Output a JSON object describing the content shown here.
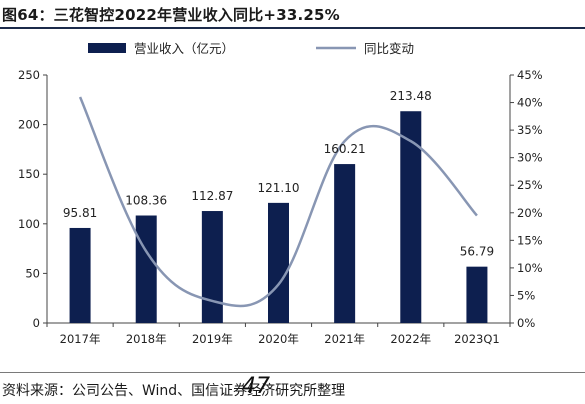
{
  "figure_title": "图64：三花智控2022年营业收入同比+33.25%",
  "source_text": "资料来源：公司公告、Wind、国信证券经济研究所整理",
  "watermark": "47",
  "colors": {
    "bar": "#0d1f4f",
    "line": "#8896b3",
    "rule": "#1b2a4a"
  },
  "chart_data": {
    "type": "bar",
    "categories": [
      "2017年",
      "2018年",
      "2019年",
      "2020年",
      "2021年",
      "2022年",
      "2023Q1"
    ],
    "series": [
      {
        "name": "营业收入（亿元）",
        "type": "bar",
        "axis": "left",
        "values": [
          95.81,
          108.36,
          112.87,
          121.1,
          160.21,
          213.48,
          56.79
        ],
        "labels": [
          "95.81",
          "108.36",
          "112.87",
          "121.10",
          "160.21",
          "213.48",
          "56.79"
        ]
      },
      {
        "name": "同比变动",
        "type": "line",
        "axis": "right",
        "values": [
          41.0,
          13.0,
          4.0,
          7.0,
          33.0,
          33.0,
          19.5
        ]
      }
    ],
    "y_left": {
      "min": 0,
      "max": 250,
      "ticks": [
        "0",
        "50",
        "100",
        "150",
        "200",
        "250"
      ]
    },
    "y_right": {
      "min": 0,
      "max": 45,
      "ticks": [
        "0%",
        "5%",
        "10%",
        "15%",
        "20%",
        "25%",
        "30%",
        "35%",
        "40%",
        "45%"
      ]
    },
    "legend_position": "top",
    "grid": false
  }
}
